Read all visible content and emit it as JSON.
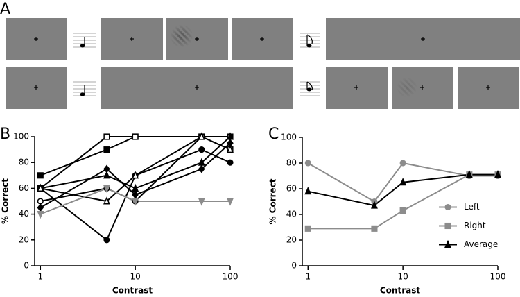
{
  "panel_labels": [
    "A",
    "B",
    "C"
  ],
  "chart_data": [
    {
      "type": "line",
      "xlabel": "Contrast",
      "ylabel": "% Correct",
      "log_x": true,
      "x": [
        1,
        5,
        10,
        50,
        100
      ],
      "xlim": [
        0.87,
        100
      ],
      "ylim": [
        0,
        100
      ],
      "xticks": [
        1,
        10,
        100
      ],
      "yticks": [
        0,
        20,
        40,
        60,
        80,
        100
      ],
      "series": [
        {
          "color": "#000000",
          "marker": "square",
          "filled": true,
          "values": [
            70,
            90,
            100,
            100,
            100
          ]
        },
        {
          "color": "#000000",
          "marker": "square",
          "filled": false,
          "values": [
            60,
            100,
            100,
            100,
            90
          ]
        },
        {
          "color": "#000000",
          "marker": "circle",
          "filled": true,
          "values": [
            60,
            20,
            70,
            90,
            80
          ]
        },
        {
          "color": "#000000",
          "marker": "circle",
          "filled": false,
          "values": [
            50,
            60,
            50,
            100,
            100
          ]
        },
        {
          "color": "#000000",
          "marker": "diamond",
          "filled": true,
          "values": [
            45,
            75,
            55,
            75,
            95
          ]
        },
        {
          "color": "#000000",
          "marker": "triangle",
          "filled": true,
          "values": [
            60,
            70,
            60,
            80,
            100
          ]
        },
        {
          "color": "#000000",
          "marker": "triangle",
          "filled": false,
          "values": [
            60,
            50,
            70,
            100,
            90
          ]
        },
        {
          "color": "#8c8c8c",
          "marker": "triangle-down",
          "filled": true,
          "values": [
            40,
            60,
            50,
            50,
            50
          ]
        }
      ]
    },
    {
      "type": "line",
      "xlabel": "Contrast",
      "ylabel": "% Correct",
      "log_x": true,
      "legend": "right",
      "x": [
        1,
        5,
        10,
        50,
        100
      ],
      "xlim": [
        0.87,
        100
      ],
      "ylim": [
        0,
        100
      ],
      "xticks": [
        1,
        10,
        100
      ],
      "yticks": [
        0,
        20,
        40,
        60,
        80,
        100
      ],
      "series": [
        {
          "name": "Left",
          "color": "#8c8c8c",
          "marker": "circle",
          "filled": true,
          "values": [
            80,
            50,
            80,
            70,
            70
          ]
        },
        {
          "name": "Right",
          "color": "#8c8c8c",
          "marker": "square",
          "filled": true,
          "values": [
            29,
            29,
            43,
            71,
            71
          ]
        },
        {
          "name": "Average",
          "color": "#000000",
          "marker": "triangle",
          "filled": true,
          "values": [
            58,
            47,
            65,
            71,
            71
          ]
        }
      ]
    }
  ]
}
